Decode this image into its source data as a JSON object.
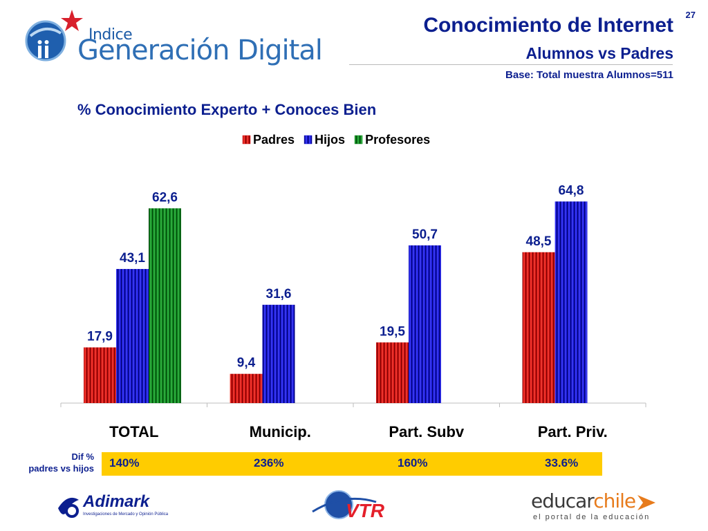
{
  "header": {
    "logo_indice": "Indice",
    "logo_brand": "Generación Digital",
    "title": "Conocimiento de Internet",
    "subtitle": "Alumnos vs Padres",
    "base": "Base: Total muestra Alumnos=511",
    "page_number": "27"
  },
  "colors": {
    "padres": "#d41010",
    "hijos": "#1414d8",
    "profesores": "#0f8a1f",
    "text": "#0c1f8f",
    "dif_band": "#ffcc00"
  },
  "chart_data": {
    "type": "bar",
    "title": "% Conocimiento Experto + Conoces Bien",
    "categories": [
      "TOTAL",
      "Municip.",
      "Part. Subv",
      "Part. Priv."
    ],
    "series": [
      {
        "name": "Padres",
        "values": [
          17.9,
          9.4,
          19.5,
          48.5
        ],
        "labels": [
          "17,9",
          "9,4",
          "19,5",
          "48,5"
        ]
      },
      {
        "name": "Hijos",
        "values": [
          43.1,
          31.6,
          50.7,
          64.8
        ],
        "labels": [
          "43,1",
          "31,6",
          "50,7",
          "64,8"
        ]
      },
      {
        "name": "Profesores",
        "values": [
          62.6,
          null,
          null,
          null
        ],
        "labels": [
          "62,6",
          "",
          "",
          ""
        ]
      }
    ],
    "ylim": [
      0,
      70
    ],
    "grid": false,
    "legend_position": "top-center"
  },
  "diff": {
    "label_line1": "Dif %",
    "label_line2": "padres vs hijos",
    "values": [
      "140%",
      "236%",
      "160%",
      "33.6%"
    ]
  },
  "footer": {
    "adimark": "Adimark",
    "adimark_sub": "Investigaciones de Mercado y Opinión Pública",
    "vtr": "VTR",
    "educar_a": "educar",
    "educar_b": "chile",
    "educar_sub": "el portal de la educación"
  }
}
